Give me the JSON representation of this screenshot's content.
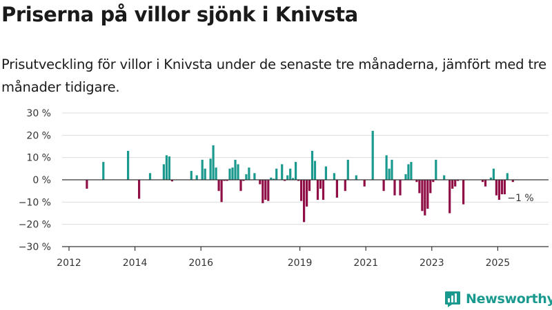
{
  "title": "Priserna på villor sjönk i Knivsta",
  "subtitle": "Prisutveckling för villor i Knivsta under de senaste tre månaderna, jämfört med tre månader tidigare.",
  "brand": {
    "name": "Newsworthy",
    "color": "#1a9a8e",
    "icon": "bar-chart-logo-icon"
  },
  "colors": {
    "positive": "#1a9a8e",
    "negative": "#8f0e46",
    "grid": "#dcdcdc",
    "axis": "#333333"
  },
  "chart_data": {
    "type": "bar",
    "title": "Priserna på villor sjönk i Knivsta",
    "ylabel": "",
    "xlabel": "",
    "ylim": [
      -30,
      30
    ],
    "xlim": [
      "2012-01",
      "2026-12"
    ],
    "y_ticks": [
      {
        "value": -30,
        "label": "−30 %"
      },
      {
        "value": -20,
        "label": "−20 %"
      },
      {
        "value": -10,
        "label": "−10 %"
      },
      {
        "value": 0,
        "label": "0 %"
      },
      {
        "value": 10,
        "label": "10 %"
      },
      {
        "value": 20,
        "label": "20 %"
      },
      {
        "value": 30,
        "label": "30 %"
      }
    ],
    "x_ticks": [
      {
        "date": "2012-01",
        "label": "2012"
      },
      {
        "date": "2014-01",
        "label": "2014"
      },
      {
        "date": "2016-01",
        "label": "2016"
      },
      {
        "date": "2019-01",
        "label": "2019"
      },
      {
        "date": "2021-01",
        "label": "2021"
      },
      {
        "date": "2023-01",
        "label": "2023"
      },
      {
        "date": "2025-01",
        "label": "2025"
      }
    ],
    "grid": true,
    "annotation": {
      "date": "2025-06",
      "value": -1,
      "label": "−1 %"
    },
    "series": [
      {
        "x": [
          "2012-07",
          "2013-01",
          "2013-10",
          "2014-02",
          "2014-06",
          "2014-11",
          "2014-12",
          "2015-01",
          "2015-02",
          "2015-09",
          "2015-11",
          "2016-01",
          "2016-02",
          "2016-04",
          "2016-05",
          "2016-06",
          "2016-07",
          "2016-08",
          "2016-09",
          "2016-10",
          "2016-11",
          "2016-12",
          "2017-01",
          "2017-02",
          "2017-03",
          "2017-04",
          "2017-05",
          "2017-06",
          "2017-08",
          "2017-10",
          "2017-11",
          "2017-12",
          "2018-01",
          "2018-02",
          "2018-03",
          "2018-04",
          "2018-06",
          "2018-07",
          "2018-08",
          "2018-09",
          "2018-10",
          "2018-11",
          "2018-12",
          "2019-01",
          "2019-02",
          "2019-03",
          "2019-04",
          "2019-05",
          "2019-06",
          "2019-07",
          "2019-08",
          "2019-09",
          "2019-10",
          "2020-01",
          "2020-02",
          "2020-05",
          "2020-06",
          "2020-09",
          "2020-12",
          "2021-03",
          "2021-07",
          "2021-08",
          "2021-09",
          "2021-10",
          "2021-11",
          "2022-01",
          "2022-03",
          "2022-04",
          "2022-05",
          "2022-07",
          "2022-08",
          "2022-09",
          "2022-10",
          "2022-11",
          "2022-12",
          "2023-01",
          "2023-02",
          "2023-05",
          "2023-07",
          "2023-08",
          "2023-09",
          "2023-10",
          "2023-12",
          "2024-07",
          "2024-08",
          "2024-10",
          "2024-11",
          "2024-12",
          "2025-01",
          "2025-02",
          "2025-03",
          "2025-04",
          "2025-06"
        ],
        "values": [
          -4,
          8,
          13,
          -8.5,
          3,
          7,
          11,
          10.5,
          -0.7,
          4,
          2,
          9,
          5,
          9.5,
          15.5,
          5.5,
          -5,
          -10,
          -0.5,
          -0.5,
          5,
          5.5,
          9,
          7,
          -5,
          -0.5,
          2.5,
          5.5,
          3,
          -2,
          -10.5,
          -9,
          -9.5,
          1,
          0.5,
          5,
          7,
          -0.5,
          2,
          5,
          0.8,
          8,
          -0.5,
          -9.5,
          -19,
          -12,
          -5,
          13,
          8.5,
          -9,
          -4,
          -9,
          6,
          3,
          -8,
          -5,
          9,
          2,
          -3,
          22,
          -5,
          11,
          5,
          9,
          -7,
          -7,
          2.5,
          7,
          8,
          -1,
          -6,
          -14,
          -16,
          -13,
          -6,
          -1,
          9,
          2,
          -15,
          -4,
          -3,
          -0.5,
          -11,
          -1,
          -3,
          1,
          5,
          -7,
          -9,
          -6.5,
          -6.5,
          3,
          -1
        ]
      }
    ]
  }
}
